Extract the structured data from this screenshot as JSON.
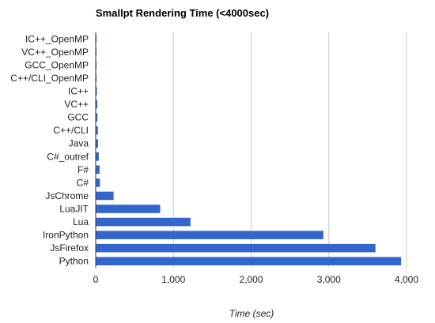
{
  "colors": {
    "bar": "#3366cc",
    "grid": "#cccccc",
    "axis": "#333333"
  },
  "chart_data": {
    "type": "bar",
    "orientation": "horizontal",
    "title": "Smallpt Rendering Time (<4000sec)",
    "xlabel": "Time (sec)",
    "ylabel": "",
    "xlim": [
      0,
      4000
    ],
    "xticks": [
      0,
      1000,
      2000,
      3000,
      4000
    ],
    "xtick_labels": [
      "0",
      "1,000",
      "2,000",
      "3,000",
      "4,000"
    ],
    "grid": true,
    "legend": "none",
    "categories": [
      "IC++_OpenMP",
      "VC++_OpenMP",
      "GCC_OpenMP",
      "C++/CLI_OpenMP",
      "IC++",
      "VC++",
      "GCC",
      "C++/CLI",
      "Java",
      "C#_outref",
      "F#",
      "C#",
      "JsChrome",
      "LuaJIT",
      "Lua",
      "IronPython",
      "JsFirefox",
      "Python"
    ],
    "values": [
      4,
      5,
      6,
      8,
      15,
      20,
      22,
      28,
      30,
      40,
      50,
      55,
      230,
      830,
      1220,
      2930,
      3600,
      3930
    ]
  }
}
